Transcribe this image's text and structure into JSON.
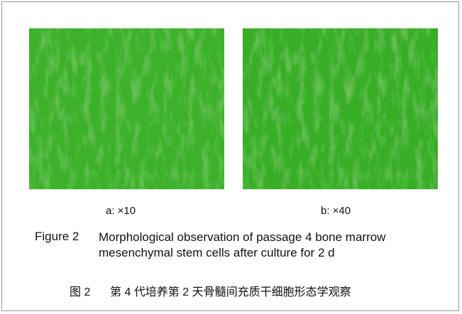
{
  "figure": {
    "panels": [
      {
        "label": "a: ×10"
      },
      {
        "label": "b: ×40"
      }
    ],
    "caption": {
      "label": "Figure 2",
      "text": "Morphological observation of passage 4 bone marrow mesenchymal stem cells after culture for 2 d"
    },
    "caption_cn": {
      "label": "图 2",
      "text": "第 4 代培养第 2 天骨髓间充质干细胞形态学观察"
    }
  }
}
